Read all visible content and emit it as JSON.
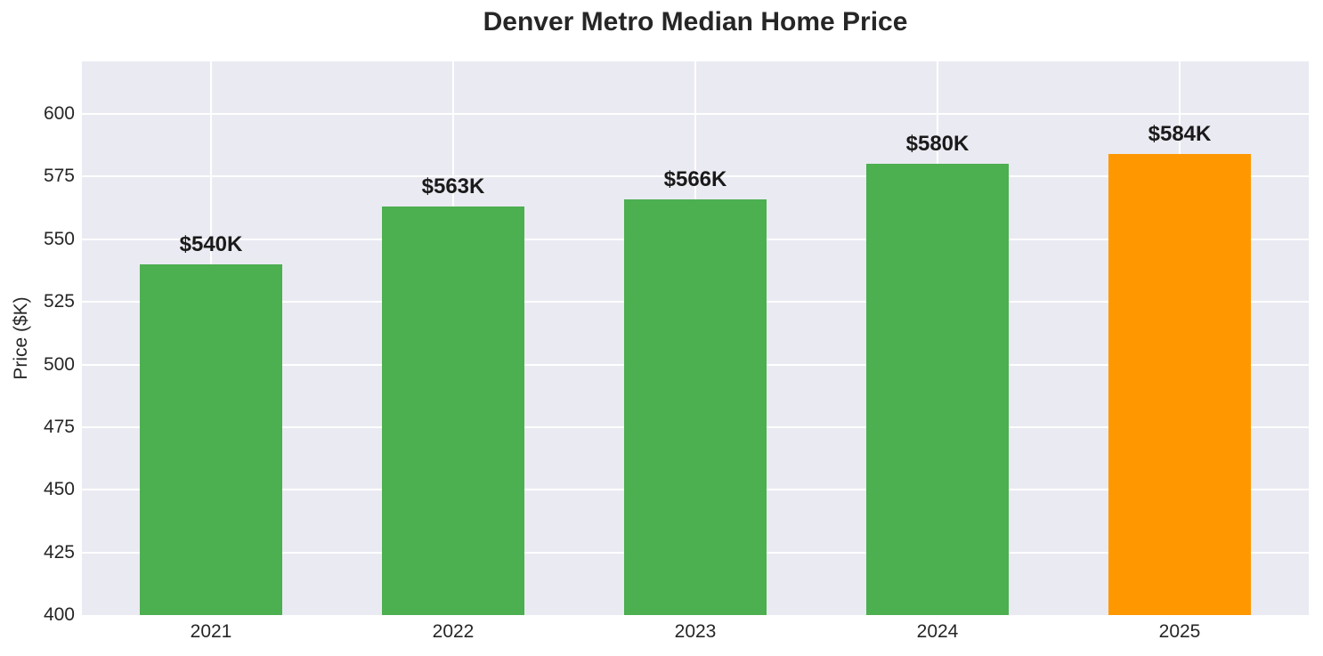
{
  "chart_data": {
    "type": "bar",
    "title": "Denver Metro Median Home Price",
    "xlabel": "",
    "ylabel": "Price ($K)",
    "categories": [
      "2021",
      "2022",
      "2023",
      "2024",
      "2025"
    ],
    "values": [
      540,
      563,
      566,
      580,
      584
    ],
    "bar_labels": [
      "$540K",
      "$563K",
      "$566K",
      "$580K",
      "$584K"
    ],
    "bar_colors": [
      "#4CAF50",
      "#4CAF50",
      "#4CAF50",
      "#4CAF50",
      "#FF9800"
    ],
    "base_color": "#4CAF50",
    "highlight_color": "#FF9800",
    "yticks": [
      400,
      425,
      450,
      475,
      500,
      525,
      550,
      575,
      600
    ],
    "ylim": [
      400,
      621
    ],
    "grid": true,
    "legend_position": "none",
    "plot_bg_color": "#EAEAF2",
    "grid_color": "#FFFFFF",
    "text_color": "#262626"
  }
}
